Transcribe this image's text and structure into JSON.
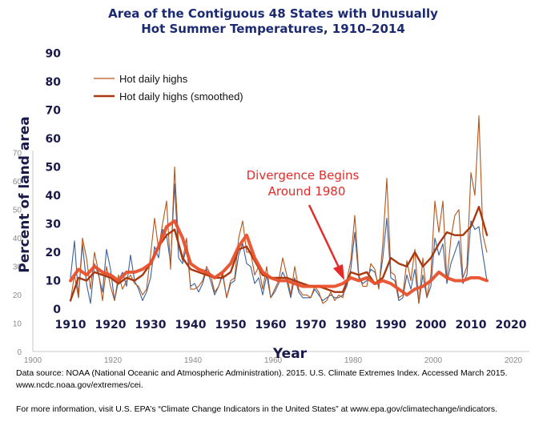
{
  "chart_data": {
    "type": "line",
    "title": [
      "Area of the Contiguous 48 States with Unusually",
      "Hot Summer Temperatures, 1910–2014"
    ],
    "xlabel": "Year",
    "ylabel": "Percent of land area",
    "xlim": [
      1910,
      2020
    ],
    "ylim": [
      0,
      90
    ],
    "x_ticks": [
      1910,
      1920,
      1930,
      1940,
      1950,
      1960,
      1970,
      1980,
      1990,
      2000,
      2010,
      2020
    ],
    "y_ticks": [
      0,
      10,
      20,
      30,
      40,
      50,
      60,
      70,
      80,
      90
    ],
    "background_axis": {
      "x_ticks": [
        1900,
        1920,
        1940,
        1960,
        1980,
        2000,
        2020
      ],
      "y_ticks": [
        0,
        10,
        20,
        30,
        40,
        50,
        60,
        70
      ]
    },
    "legend_position": "top-left",
    "series": [
      {
        "name": "Hot daily highs",
        "color": "#b5551b",
        "style": "thin",
        "x": [
          1910,
          1911,
          1912,
          1913,
          1914,
          1915,
          1916,
          1917,
          1918,
          1919,
          1920,
          1921,
          1922,
          1923,
          1924,
          1925,
          1926,
          1927,
          1928,
          1929,
          1930,
          1931,
          1932,
          1933,
          1934,
          1935,
          1936,
          1937,
          1938,
          1939,
          1940,
          1941,
          1942,
          1943,
          1944,
          1945,
          1946,
          1947,
          1948,
          1949,
          1950,
          1951,
          1952,
          1953,
          1954,
          1955,
          1956,
          1957,
          1958,
          1959,
          1960,
          1961,
          1962,
          1963,
          1964,
          1965,
          1966,
          1967,
          1968,
          1969,
          1970,
          1971,
          1972,
          1973,
          1974,
          1975,
          1976,
          1977,
          1978,
          1979,
          1980,
          1981,
          1982,
          1983,
          1984,
          1985,
          1986,
          1987,
          1988,
          1989,
          1990,
          1991,
          1992,
          1993,
          1994,
          1995,
          1996,
          1997,
          1998,
          1999,
          2000,
          2001,
          2002,
          2003,
          2004,
          2005,
          2006,
          2007,
          2008,
          2009,
          2010,
          2011,
          2012,
          2013,
          2014
        ],
        "values": [
          3,
          12,
          4,
          25,
          18,
          7,
          20,
          13,
          3,
          15,
          8,
          3,
          12,
          7,
          10,
          12,
          9,
          8,
          5,
          7,
          19,
          32,
          21,
          30,
          38,
          14,
          50,
          22,
          17,
          25,
          7,
          7,
          8,
          10,
          15,
          12,
          6,
          8,
          13,
          4,
          10,
          11,
          25,
          31,
          20,
          20,
          12,
          15,
          7,
          15,
          4,
          7,
          10,
          18,
          12,
          5,
          15,
          7,
          5,
          5,
          4,
          8,
          6,
          2,
          3,
          6,
          3,
          5,
          4,
          10,
          17,
          33,
          12,
          8,
          8,
          16,
          14,
          7,
          23,
          46,
          13,
          12,
          4,
          5,
          17,
          10,
          21,
          2,
          18,
          4,
          12,
          38,
          27,
          38,
          10,
          25,
          33,
          35,
          11,
          15,
          48,
          40,
          68,
          26,
          20
        ]
      },
      {
        "name": "Hot daily highs (smoothed)",
        "color": "#a8380e",
        "style": "thick",
        "x": [
          1910,
          1912,
          1914,
          1916,
          1918,
          1920,
          1922,
          1924,
          1926,
          1928,
          1930,
          1932,
          1934,
          1936,
          1938,
          1940,
          1942,
          1944,
          1946,
          1948,
          1950,
          1952,
          1954,
          1956,
          1958,
          1960,
          1962,
          1964,
          1966,
          1968,
          1970,
          1972,
          1974,
          1976,
          1978,
          1980,
          1982,
          1984,
          1986,
          1988,
          1990,
          1992,
          1994,
          1996,
          1998,
          2000,
          2002,
          2004,
          2006,
          2008,
          2010,
          2012,
          2014
        ],
        "values": [
          3,
          11,
          10,
          13,
          12,
          11,
          9,
          11,
          10,
          12,
          16,
          22,
          26,
          28,
          18,
          14,
          13,
          12,
          11,
          11,
          13,
          21,
          22,
          17,
          12,
          11,
          11,
          11,
          10,
          9,
          8,
          8,
          7,
          6,
          6,
          13,
          12,
          13,
          9,
          11,
          18,
          16,
          15,
          20,
          15,
          18,
          23,
          27,
          26,
          26,
          29,
          36,
          26
        ]
      },
      {
        "name": "",
        "color": "#3a5f9a",
        "style": "thin",
        "x": [
          1910,
          1911,
          1912,
          1913,
          1914,
          1915,
          1916,
          1917,
          1918,
          1919,
          1920,
          1921,
          1922,
          1923,
          1924,
          1925,
          1926,
          1927,
          1928,
          1929,
          1930,
          1931,
          1932,
          1933,
          1934,
          1935,
          1936,
          1937,
          1938,
          1939,
          1940,
          1941,
          1942,
          1943,
          1944,
          1945,
          1946,
          1947,
          1948,
          1949,
          1950,
          1951,
          1952,
          1953,
          1954,
          1955,
          1956,
          1957,
          1958,
          1959,
          1960,
          1961,
          1962,
          1963,
          1964,
          1965,
          1966,
          1967,
          1968,
          1969,
          1970,
          1971,
          1972,
          1973,
          1974,
          1975,
          1976,
          1977,
          1978,
          1979,
          1980,
          1981,
          1982,
          1983,
          1984,
          1985,
          1986,
          1987,
          1988,
          1989,
          1990,
          1991,
          1992,
          1993,
          1994,
          1995,
          1996,
          1997,
          1998,
          1999,
          2000,
          2001,
          2002,
          2003,
          2004,
          2005,
          2006,
          2007,
          2008,
          2009,
          2010,
          2011,
          2012,
          2013,
          2014
        ],
        "values": [
          11,
          24,
          4,
          23,
          9,
          2,
          16,
          12,
          6,
          21,
          14,
          3,
          10,
          13,
          8,
          19,
          10,
          7,
          3,
          6,
          11,
          22,
          18,
          28,
          26,
          16,
          44,
          18,
          16,
          22,
          8,
          9,
          6,
          9,
          14,
          10,
          5,
          8,
          12,
          4,
          9,
          10,
          19,
          23,
          16,
          15,
          9,
          11,
          5,
          12,
          4,
          6,
          9,
          13,
          10,
          4,
          11,
          6,
          4,
          4,
          4,
          7,
          5,
          3,
          4,
          5,
          4,
          4,
          5,
          8,
          14,
          27,
          11,
          9,
          10,
          14,
          13,
          8,
          18,
          32,
          11,
          10,
          3,
          4,
          12,
          7,
          14,
          2,
          12,
          4,
          8,
          25,
          19,
          23,
          9,
          16,
          20,
          24,
          9,
          12,
          31,
          28,
          29,
          19,
          10
        ]
      },
      {
        "name": "",
        "color": "#e8502a",
        "style": "bold",
        "x": [
          1910,
          1912,
          1914,
          1916,
          1918,
          1920,
          1922,
          1924,
          1926,
          1928,
          1930,
          1932,
          1934,
          1936,
          1938,
          1940,
          1942,
          1944,
          1946,
          1948,
          1950,
          1952,
          1954,
          1956,
          1958,
          1960,
          1962,
          1964,
          1966,
          1968,
          1970,
          1972,
          1974,
          1976,
          1978,
          1980,
          1982,
          1984,
          1986,
          1988,
          1990,
          1992,
          1994,
          1996,
          1998,
          2000,
          2002,
          2004,
          2006,
          2008,
          2010,
          2012,
          2014
        ],
        "values": [
          10,
          14,
          12,
          15,
          13,
          12,
          10,
          13,
          13,
          14,
          16,
          22,
          29,
          31,
          25,
          16,
          14,
          13,
          11,
          13,
          16,
          22,
          26,
          18,
          13,
          11,
          10,
          10,
          9,
          8,
          8,
          8,
          8,
          8,
          9,
          11,
          10,
          11,
          9,
          10,
          9,
          7,
          5,
          7,
          8,
          10,
          13,
          11,
          10,
          10,
          11,
          11,
          10
        ]
      }
    ],
    "annotation": {
      "text": [
        "Divergence Begins",
        "Around 1980"
      ],
      "points_to_year": 1978
    }
  },
  "footnotes": {
    "source": "Data source: NOAA (National Oceanic and Atmospheric Administration). 2015. U.S. Climate Extremes Index. Accessed March 2015.",
    "url": "www.ncdc.noaa.gov/extremes/cei.",
    "more_info": "For more information, visit U.S. EPA’s “Climate Change Indicators in the United States” at www.epa.gov/climatechange/indicators."
  }
}
